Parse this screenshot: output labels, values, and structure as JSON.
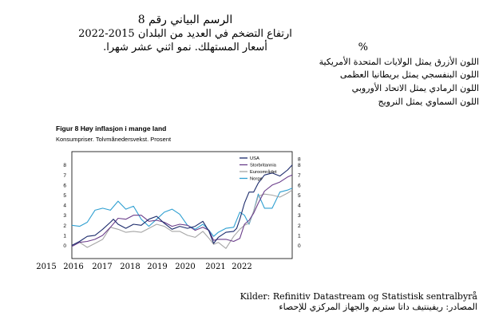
{
  "arabic_header": {
    "title": "الرسم البياني رقم 8",
    "subtitle": "ارتفاع التضخم في العديد من البلدان 2015-2022",
    "units_line": "أسعار المستهلك. نمو اثني عشر شهرا.",
    "percent": "%"
  },
  "arabic_legend": [
    "اللون الأزرق يمثل الولايات المتحدة الأمريكية",
    "اللون البنفسجي يمثل بريطانيا العظمى",
    "اللون الرمادي يمثل الاتحاد الأوروبي",
    "اللون السماوي يمثل النرويج"
  ],
  "sources": {
    "norwegian": "Kilder: Refinitiv Datastream og Statistisk sentralbyrå",
    "arabic": "المصادر: ريفينتيف داتا ستريم والجهاز المركزي للإحصاء"
  },
  "chart_data": {
    "type": "line",
    "title": "Figur 8 Høy inflasjon i mange land",
    "subtitle": "Konsumpriser. Tolvmånedersvekst. Prosent",
    "ylim": [
      -1,
      8
    ],
    "y_ticks_left": [
      "0",
      "1",
      "2",
      "3",
      "4",
      "5",
      "6",
      "7",
      "8"
    ],
    "y_ticks_right": [
      "0",
      "1",
      "2",
      "3",
      "4",
      "5",
      "6",
      "7",
      "8"
    ],
    "x_tick_labels": [
      "2015",
      "2016",
      "2017",
      "2018",
      "2019",
      "2020",
      "2021",
      "2022"
    ],
    "x_range": [
      2015.75,
      2022.9
    ],
    "legend_position": "top-right",
    "grid": false,
    "series": [
      {
        "name": "USA",
        "color": "#1b2a6b",
        "x": [
          2015.75,
          2016.0,
          2016.25,
          2016.5,
          2016.75,
          2017.0,
          2017.1,
          2017.25,
          2017.5,
          2017.75,
          2018.0,
          2018.25,
          2018.5,
          2018.75,
          2019.0,
          2019.25,
          2019.5,
          2019.75,
          2020.0,
          2020.2,
          2020.35,
          2020.5,
          2020.75,
          2021.0,
          2021.1,
          2021.2,
          2021.35,
          2021.5,
          2021.65,
          2021.8,
          2022.0,
          2022.25,
          2022.5,
          2022.75,
          2022.9
        ],
        "values": [
          0.0,
          0.4,
          0.9,
          1.0,
          1.6,
          2.3,
          2.6,
          2.1,
          1.7,
          2.1,
          2.0,
          2.6,
          2.9,
          2.2,
          1.6,
          1.9,
          1.7,
          1.9,
          2.4,
          1.4,
          0.2,
          0.8,
          1.3,
          1.4,
          1.7,
          2.6,
          4.2,
          5.3,
          5.3,
          6.2,
          7.0,
          7.2,
          6.9,
          7.5,
          8.0
        ]
      },
      {
        "name": "Storbritannia",
        "color": "#6a3d8a",
        "x": [
          2015.75,
          2016.0,
          2016.25,
          2016.5,
          2016.75,
          2017.0,
          2017.25,
          2017.5,
          2017.75,
          2018.0,
          2018.25,
          2018.5,
          2018.75,
          2019.0,
          2019.25,
          2019.5,
          2019.75,
          2020.0,
          2020.2,
          2020.35,
          2020.5,
          2020.75,
          2021.0,
          2021.2,
          2021.35,
          2021.5,
          2021.65,
          2021.8,
          2022.0,
          2022.25,
          2022.5,
          2022.75,
          2022.9
        ],
        "values": [
          -0.1,
          0.3,
          0.4,
          0.6,
          1.0,
          1.8,
          2.7,
          2.6,
          3.0,
          3.0,
          2.4,
          2.5,
          2.3,
          1.9,
          2.1,
          2.0,
          1.5,
          1.8,
          1.5,
          0.5,
          0.6,
          0.6,
          0.4,
          0.7,
          2.1,
          2.5,
          3.2,
          4.2,
          5.4,
          6.0,
          6.3,
          6.8,
          7.0
        ]
      },
      {
        "name": "Euroområdet",
        "color": "#a6a6a6",
        "x": [
          2015.75,
          2016.0,
          2016.25,
          2016.5,
          2016.75,
          2017.0,
          2017.25,
          2017.5,
          2017.75,
          2018.0,
          2018.25,
          2018.5,
          2018.75,
          2019.0,
          2019.25,
          2019.5,
          2019.75,
          2020.0,
          2020.2,
          2020.35,
          2020.5,
          2020.75,
          2021.0,
          2021.2,
          2021.35,
          2021.5,
          2021.65,
          2021.8,
          2022.0,
          2022.25,
          2022.5,
          2022.75,
          2022.9
        ],
        "values": [
          -0.1,
          0.3,
          -0.2,
          0.2,
          0.6,
          1.8,
          1.6,
          1.3,
          1.4,
          1.3,
          1.7,
          2.1,
          1.9,
          1.4,
          1.4,
          1.0,
          0.8,
          1.4,
          0.7,
          0.1,
          0.3,
          -0.3,
          0.9,
          1.6,
          2.0,
          2.2,
          3.4,
          4.9,
          5.1,
          5.0,
          4.8,
          5.2,
          5.5
        ]
      },
      {
        "name": "Norge",
        "color": "#2e9fd1",
        "x": [
          2015.75,
          2016.0,
          2016.25,
          2016.5,
          2016.75,
          2017.0,
          2017.25,
          2017.5,
          2017.75,
          2018.0,
          2018.25,
          2018.5,
          2018.75,
          2019.0,
          2019.25,
          2019.5,
          2019.75,
          2020.0,
          2020.2,
          2020.35,
          2020.5,
          2020.75,
          2021.0,
          2021.2,
          2021.35,
          2021.5,
          2021.65,
          2021.8,
          2022.0,
          2022.25,
          2022.5,
          2022.75,
          2022.9
        ],
        "values": [
          2.0,
          1.9,
          2.3,
          3.5,
          3.7,
          3.5,
          4.4,
          3.6,
          3.9,
          2.6,
          1.9,
          2.6,
          3.3,
          3.6,
          3.1,
          2.0,
          1.6,
          2.1,
          1.5,
          0.9,
          1.3,
          1.7,
          1.8,
          3.3,
          3.0,
          2.1,
          3.4,
          5.1,
          3.7,
          3.7,
          5.3,
          5.5,
          5.7
        ]
      }
    ]
  }
}
